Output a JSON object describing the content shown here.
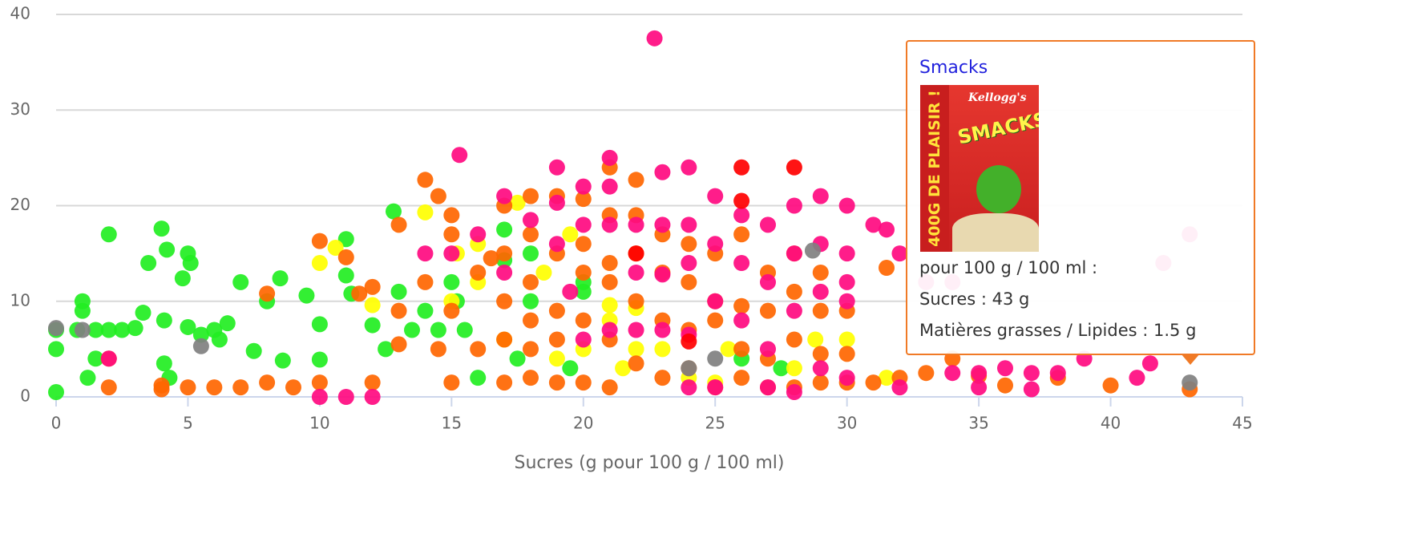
{
  "chart_data": {
    "type": "scatter",
    "x_label": "Sucres (g pour 100 g / 100 ml)",
    "xlim": [
      0,
      45
    ],
    "xticks": [
      0,
      5,
      10,
      15,
      20,
      25,
      30,
      35,
      40,
      45
    ],
    "ylim": [
      0,
      40
    ],
    "yticks": [
      0,
      10,
      20,
      30,
      40
    ],
    "grid": true,
    "series": [
      {
        "color": "#22ee22",
        "x": [
          0,
          0,
          0,
          1,
          1,
          0.8,
          1.2,
          1.5,
          1.5,
          2,
          2,
          2.5,
          3,
          3.3,
          3.5,
          4,
          4.2,
          4.1,
          4.3,
          4.1,
          4.8,
          5,
          5.1,
          5,
          5.5,
          6,
          6.2,
          6.5,
          7,
          7.5,
          8,
          8.5,
          8.6,
          9.5,
          10,
          10,
          11,
          11,
          11.2,
          12,
          12.5,
          12.8,
          13,
          13.5,
          14,
          14.5,
          15,
          15.2,
          15.5,
          16,
          17,
          17,
          17.5,
          18,
          18,
          19.5,
          20,
          20,
          26,
          27.5
        ],
        "values": [
          7,
          5,
          0.5,
          10,
          9,
          7,
          2,
          4,
          7,
          17,
          7,
          7,
          7.2,
          8.8,
          14,
          17.6,
          15.4,
          8,
          2,
          3.5,
          12.4,
          15,
          14,
          7.3,
          6.5,
          7,
          6,
          7.7,
          12,
          4.8,
          10,
          12.4,
          3.8,
          10.6,
          7.6,
          3.9,
          16.5,
          12.7,
          10.8,
          7.5,
          5,
          19.4,
          11,
          7,
          9,
          7,
          12,
          10,
          7,
          2,
          17.5,
          14.3,
          4,
          15,
          10,
          3,
          12,
          11,
          4,
          3
        ]
      },
      {
        "color": "#ffff00",
        "x": [
          10,
          10.6,
          12,
          14,
          15,
          15.2,
          16,
          16,
          17,
          17.5,
          18.5,
          19,
          19.5,
          20,
          21,
          21,
          21.5,
          22,
          22,
          23,
          24,
          25,
          25.5,
          28,
          28.8,
          30,
          31.5
        ],
        "values": [
          14,
          15.6,
          9.6,
          19.3,
          10,
          15,
          12,
          16,
          6,
          20.3,
          13,
          4,
          17,
          5,
          8,
          9.6,
          3,
          9.3,
          5,
          5,
          2,
          1.5,
          5,
          3,
          6,
          6,
          2
        ]
      },
      {
        "color": "#ff6600",
        "x": [
          2,
          2,
          4,
          4,
          5,
          6,
          7,
          8,
          8,
          9,
          10,
          10,
          11,
          11.5,
          12,
          12,
          13,
          13,
          13,
          14,
          14.5,
          14,
          14.5,
          15,
          15,
          15,
          15,
          16,
          16,
          16.5,
          17,
          17,
          17,
          17,
          17,
          18,
          18,
          18,
          18,
          18,
          18,
          19,
          19,
          19,
          19,
          19,
          20,
          20,
          20,
          20,
          20,
          21,
          21,
          21,
          21,
          21,
          21,
          22,
          22,
          22,
          22,
          22,
          23,
          23,
          23,
          23,
          24,
          24,
          24,
          24,
          25,
          25,
          25,
          25,
          26,
          26,
          26,
          26,
          27,
          27,
          27,
          27,
          28,
          28,
          28,
          28,
          29,
          29,
          29,
          29,
          30,
          30,
          30,
          31,
          31.5,
          32,
          33,
          34,
          35,
          36,
          38,
          40,
          43
        ],
        "values": [
          1,
          4,
          0.8,
          1.2,
          1,
          1,
          1,
          1.5,
          10.8,
          1,
          16.3,
          1.5,
          14.6,
          10.8,
          11.5,
          1.5,
          18,
          9,
          5.5,
          22.7,
          21,
          12,
          5,
          19,
          17,
          9,
          1.5,
          13,
          5,
          14.5,
          20,
          15,
          10,
          6,
          1.5,
          21,
          17,
          12,
          8,
          5,
          2,
          21,
          15,
          9,
          6,
          1.5,
          20.7,
          16,
          13,
          8,
          1.5,
          24,
          19,
          14,
          12,
          6,
          1,
          22.7,
          19,
          15,
          10,
          3.5,
          17,
          13,
          8,
          2,
          16,
          12,
          7,
          3,
          15,
          10,
          8,
          1,
          17,
          9.5,
          5,
          2,
          13,
          9,
          4,
          1,
          15,
          11,
          6,
          1,
          13,
          9,
          4.5,
          1.5,
          9,
          4.5,
          1.5,
          1.5,
          13.5,
          2,
          2.5,
          4,
          2.2,
          1.2,
          2,
          1.2,
          0.8
        ]
      },
      {
        "color": "#ff0a80",
        "x": [
          2,
          10,
          11,
          12,
          14,
          15,
          15.3,
          16,
          17,
          17,
          18,
          19,
          19,
          19,
          19.5,
          20,
          20,
          20,
          21,
          21,
          21,
          21,
          22,
          22,
          22,
          22.7,
          23,
          23,
          23,
          23,
          24,
          24,
          24,
          24,
          24,
          25,
          25,
          25,
          25,
          26,
          26,
          26,
          27,
          27,
          27,
          27,
          28,
          28,
          28,
          28,
          29,
          29,
          29,
          29,
          30,
          30,
          30,
          30,
          30,
          31,
          31.5,
          32,
          32,
          33,
          34,
          34,
          35,
          35,
          36,
          37,
          37,
          38,
          39,
          41,
          41.5,
          42,
          43
        ],
        "values": [
          4,
          0,
          0,
          0,
          15,
          15,
          25.3,
          17,
          21,
          13,
          18.5,
          24,
          20.3,
          16,
          11,
          22,
          18,
          6,
          25,
          22,
          18,
          7,
          18,
          13,
          7,
          37.5,
          23.5,
          18,
          12.8,
          7,
          24,
          18,
          14,
          6.5,
          1,
          21,
          16,
          10,
          1,
          19,
          14,
          8,
          18,
          12,
          5,
          1,
          20,
          15,
          9,
          0.5,
          21,
          16,
          11,
          3,
          20,
          15,
          12,
          10,
          2,
          18,
          17.5,
          15,
          1,
          12,
          12,
          2.5,
          2.5,
          1,
          3,
          2.5,
          0.8,
          2.5,
          4,
          2,
          3.5,
          14,
          17
        ]
      },
      {
        "color": "#ff0000",
        "x": [
          24,
          26,
          26,
          28,
          22
        ],
        "values": [
          5.8,
          24,
          20.5,
          24,
          15
        ]
      },
      {
        "color": "#808080",
        "x": [
          0,
          1,
          5.5,
          24,
          25,
          28.7,
          43
        ],
        "values": [
          7.2,
          7,
          5.3,
          3,
          4,
          15.3,
          1.5
        ]
      }
    ]
  },
  "tooltip": {
    "title": "Smacks",
    "image_texts": [
      "Kellogg's",
      "SMACKS",
      "400G DE PLAISIR !"
    ],
    "lines": [
      "pour 100 g / 100 ml :",
      "Sucres : 43 g",
      "Matières grasses / Lipides : 1.5 g"
    ]
  }
}
